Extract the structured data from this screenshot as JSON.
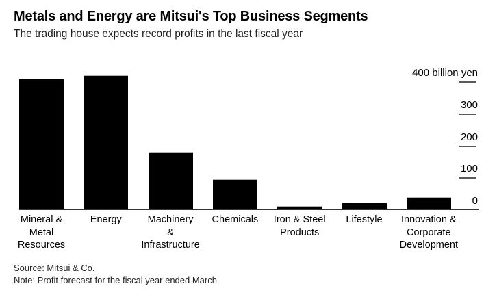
{
  "header": {
    "title": "Metals and Energy are Mitsui's Top Business Segments",
    "subtitle": "The trading house expects record profits in the last fiscal year"
  },
  "chart_data": {
    "type": "bar",
    "title": "Metals and Energy are Mitsui's Top Business Segments",
    "subtitle": "The trading house expects record profits in the last fiscal year",
    "categories": [
      "Mineral &\nMetal\nResources",
      "Energy",
      "Machinery\n&\nInfrastructure",
      "Chemicals",
      "Iron & Steel\nProducts",
      "Lifestyle",
      "Innovation &\nCorporate\nDevelopment"
    ],
    "values": [
      410,
      420,
      180,
      95,
      10,
      22,
      38
    ],
    "unit_label": "billion yen",
    "y_ticks": [
      {
        "value": 400,
        "label": "400 billion yen"
      },
      {
        "value": 300,
        "label": "300"
      },
      {
        "value": 200,
        "label": "200"
      },
      {
        "value": 100,
        "label": "100"
      },
      {
        "value": 0,
        "label": "0"
      }
    ],
    "ylim": [
      0,
      450
    ],
    "grid": false,
    "legend": "none",
    "axis_side": "right",
    "bar_color": "#000000",
    "axis_line_color": "#333333",
    "tick_line_color": "#5a5a5a"
  },
  "footer": {
    "source": "Source: Mitsui & Co.",
    "note": "Note: Profit forecast for the fiscal year ended March"
  }
}
